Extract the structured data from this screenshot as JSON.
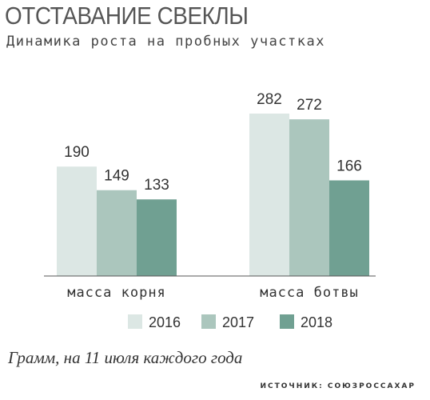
{
  "title": "ОТСТАВАНИЕ СВЕКЛЫ",
  "subtitle": "Динамика роста на пробных участках",
  "unit_note": "Грамм, на 11 июля каждого года",
  "source": "ИСТОЧНИК: СОЮЗРОССАХАР",
  "colors": {
    "2016": "#dce7e4",
    "2017": "#abc6bd",
    "2018": "#70a092",
    "axis": "#555555"
  },
  "chart_data": {
    "type": "bar",
    "categories": [
      "масса корня",
      "масса ботвы"
    ],
    "series": [
      {
        "name": "2016",
        "values": [
          190,
          282
        ]
      },
      {
        "name": "2017",
        "values": [
          149,
          272
        ]
      },
      {
        "name": "2018",
        "values": [
          133,
          166
        ]
      }
    ],
    "ylim": [
      0,
      300
    ],
    "grid": false,
    "legend": "bottom"
  }
}
